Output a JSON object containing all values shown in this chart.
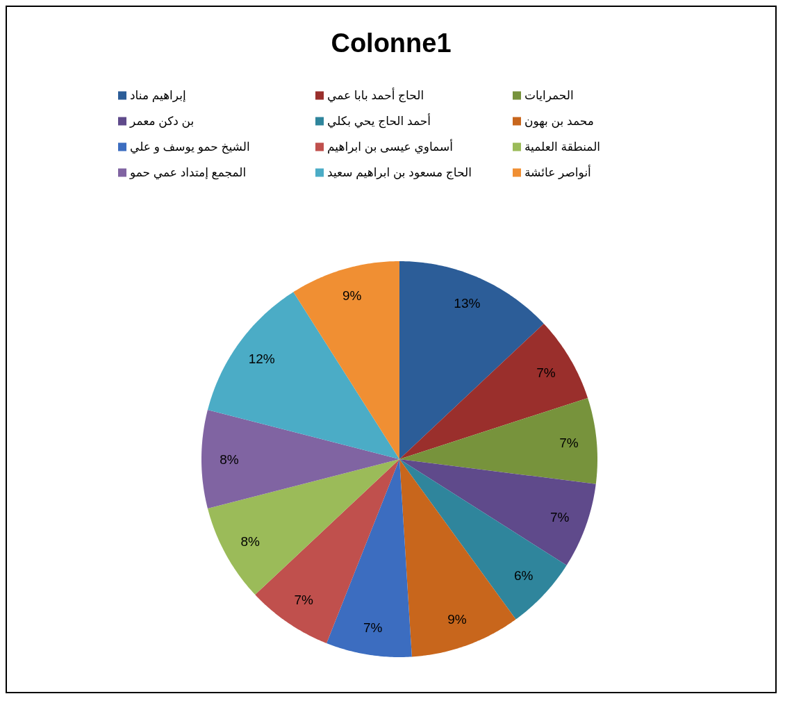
{
  "chart_data": {
    "type": "pie",
    "title": "Colonne1",
    "categories": [
      "إبراهيم مناد",
      "الحاج أحمد بابا عمي",
      "الحمرايات",
      "بن دكن معمر",
      "أحمد الحاج يحي بكلي",
      "محمد بن بهون",
      "الشيخ حمو يوسف و علي",
      "أسماوي عيسى بن ابراهيم",
      "المنطقة العلمية",
      "المجمع إمتداد عمي حمو",
      "الحاج مسعود بن ابراهيم سعيد",
      "أنواصر عائشة"
    ],
    "values": [
      13,
      7,
      7,
      7,
      6,
      9,
      7,
      7,
      8,
      8,
      12,
      9
    ],
    "colors": [
      "#2c5d98",
      "#9a2f2c",
      "#77933c",
      "#5f4a8b",
      "#2f859c",
      "#c8661c",
      "#3c6dc0",
      "#c0504d",
      "#9bbb59",
      "#8064a2",
      "#4bacc6",
      "#f08f33"
    ],
    "value_labels": [
      "13%",
      "7%",
      "7%",
      "7%",
      "6%",
      "9%",
      "7%",
      "7%",
      "8%",
      "8%",
      "12%",
      "9%"
    ],
    "legend": "top"
  }
}
